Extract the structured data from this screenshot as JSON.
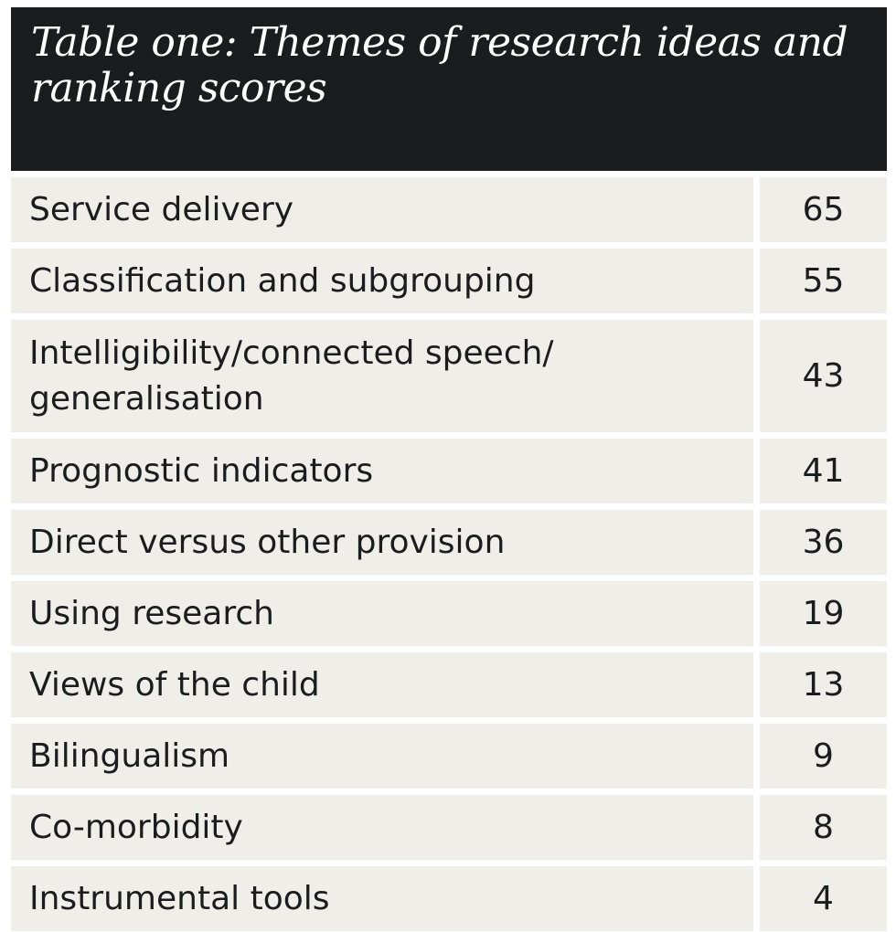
{
  "title": "Table one: Themes of research ideas and ranking scores",
  "chart_data": {
    "type": "table",
    "title": "Table one: Themes of research ideas and ranking scores",
    "columns": [
      "",
      ""
    ],
    "rows": [
      {
        "theme": "Service delivery",
        "score": "65"
      },
      {
        "theme": "Classification and subgrouping",
        "score": "55"
      },
      {
        "theme": "Intelligibility/connected speech/ generalisation",
        "score": "43"
      },
      {
        "theme": "Prognostic indicators",
        "score": "41"
      },
      {
        "theme": "Direct versus other provision",
        "score": "36"
      },
      {
        "theme": "Using research",
        "score": "19"
      },
      {
        "theme": "Views of the child",
        "score": "13"
      },
      {
        "theme": "Bilingualism",
        "score": "9"
      },
      {
        "theme": "Co-morbidity",
        "score": "8"
      },
      {
        "theme": "Instrumental tools",
        "score": "4"
      }
    ]
  },
  "colors": {
    "header_bg": "#1b1c1e",
    "header_text": "#ffffff",
    "cell_bg": "#efeee8",
    "cell_text": "#1b1c1e"
  }
}
